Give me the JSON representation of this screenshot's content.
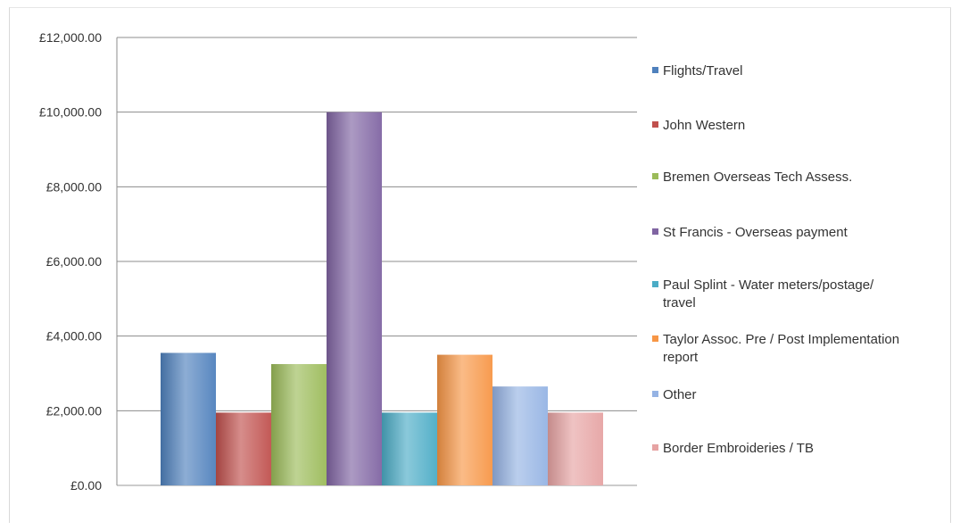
{
  "chart_data": {
    "type": "bar",
    "title": "",
    "xlabel": "",
    "ylabel": "",
    "ylim": [
      0,
      12000
    ],
    "yticks": [
      "£0.00",
      "£2,000.00",
      "£4,000.00",
      "£6,000.00",
      "£8,000.00",
      "£10,000.00",
      "£12,000.00"
    ],
    "grid": true,
    "legend_position": "right",
    "series": [
      {
        "name": "Flights/Travel",
        "value": 3550,
        "color": "#4f81bd"
      },
      {
        "name": "John Western",
        "value": 1950,
        "color": "#c0504d"
      },
      {
        "name": "Bremen Overseas Tech Assess.",
        "value": 3250,
        "color": "#9bbb59"
      },
      {
        "name": "St Francis - Overseas payment",
        "value": 10000,
        "color": "#8064a2"
      },
      {
        "name": "Paul Splint - Water meters/postage/ travel",
        "value": 1950,
        "color": "#4bacc6"
      },
      {
        "name": "Taylor Assoc. Pre / Post Implementation report",
        "value": 3500,
        "color": "#f79646"
      },
      {
        "name": "Other",
        "value": 2650,
        "color": "#95b3e4"
      },
      {
        "name": "Border Embroideries / TB",
        "value": 1950,
        "color": "#e6a3a3"
      }
    ]
  }
}
